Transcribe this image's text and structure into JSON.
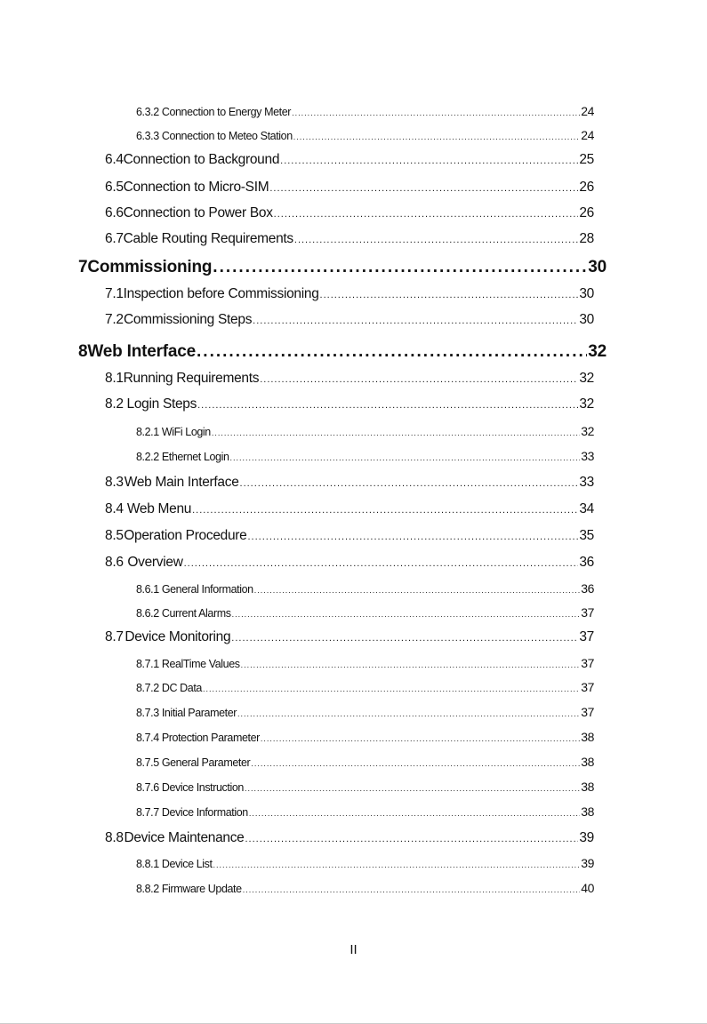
{
  "toc": [
    {
      "level": 3,
      "number": "6.3.2",
      "title": "Connection to Energy Meter",
      "page": "24"
    },
    {
      "level": 3,
      "number": "6.3.3",
      "title": "Connection to Meteo Station",
      "page": "24"
    },
    {
      "level": 2,
      "number": "6.4",
      "title": "Connection to Background",
      "page": "25"
    },
    {
      "level": 2,
      "number": "6.5",
      "title": "Connection to Micro-SIM",
      "page": "26"
    },
    {
      "level": 2,
      "number": "6.6",
      "title": "Connection to Power Box",
      "page": "26"
    },
    {
      "level": 2,
      "number": "6.7",
      "title": "Cable Routing Requirements",
      "page": "28"
    },
    {
      "level": 1,
      "number": "7",
      "title": "Commissioning",
      "page": "30"
    },
    {
      "level": 2,
      "number": "7.1",
      "title": "Inspection before Commissioning",
      "page": "30"
    },
    {
      "level": 2,
      "number": "7.2",
      "title": "Commissioning Steps",
      "page": "30"
    },
    {
      "level": 1,
      "number": "8",
      "title": "Web Interface",
      "page": "32"
    },
    {
      "level": 2,
      "number": "8.1",
      "title": "Running Requirements",
      "page": "32"
    },
    {
      "level": 2,
      "number": "8.2",
      "title": "Login Steps",
      "page": "32"
    },
    {
      "level": 3,
      "number": "8.2.1",
      "title": "WiFi Login",
      "page": "32"
    },
    {
      "level": 3,
      "number": "8.2.2",
      "title": "Ethernet Login",
      "page": "33"
    },
    {
      "level": 2,
      "number": "8.3",
      "title": "Web Main Interface",
      "page": "33"
    },
    {
      "level": 2,
      "number": "8.4",
      "title": "Web Menu",
      "page": "34"
    },
    {
      "level": 2,
      "number": "8.5",
      "title": "Operation Procedure",
      "page": "35"
    },
    {
      "level": 2,
      "number": "8.6",
      "title": "Overview",
      "page": "36"
    },
    {
      "level": 3,
      "number": "8.6.1",
      "title": "General Information",
      "page": "36"
    },
    {
      "level": 3,
      "number": "8.6.2",
      "title": "Current Alarms",
      "page": "37"
    },
    {
      "level": 2,
      "number": "8.7",
      "title": "Device Monitoring",
      "page": "37"
    },
    {
      "level": 3,
      "number": "8.7.1",
      "title": "RealTime Values",
      "page": "37"
    },
    {
      "level": 3,
      "number": "8.7.2",
      "title": "DC Data",
      "page": "37"
    },
    {
      "level": 3,
      "number": "8.7.3",
      "title": "Initial Parameter",
      "page": "37"
    },
    {
      "level": 3,
      "number": "8.7.4",
      "title": "Protection Parameter",
      "page": "38"
    },
    {
      "level": 3,
      "number": "8.7.5",
      "title": "General Parameter",
      "page": "38"
    },
    {
      "level": 3,
      "number": "8.7.6",
      "title": "Device Instruction",
      "page": "38"
    },
    {
      "level": 3,
      "number": "8.7.7",
      "title": "Device Information",
      "page": "38"
    },
    {
      "level": 2,
      "number": "8.8",
      "title": "Device Maintenance",
      "page": "39"
    },
    {
      "level": 3,
      "number": "8.8.1",
      "title": "Device List",
      "page": "39"
    },
    {
      "level": 3,
      "number": "8.8.2",
      "title": "Firmware Update",
      "page": "40"
    }
  ],
  "footer": {
    "page_number": "II"
  }
}
